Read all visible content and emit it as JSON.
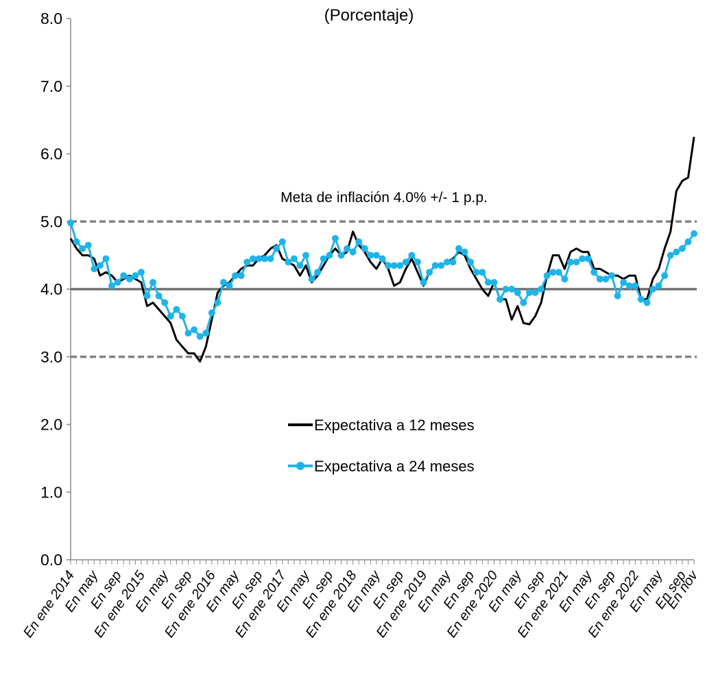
{
  "chart_data": {
    "type": "line",
    "title": "(Porcentaje)",
    "annotation": "Meta de inflación 4.0% +/- 1 p.p.",
    "categories": [
      "En ene 2014",
      null,
      null,
      null,
      "En may",
      null,
      null,
      null,
      "En sep",
      null,
      null,
      null,
      "En ene 2015",
      null,
      null,
      null,
      "En may",
      null,
      null,
      null,
      "En sep",
      null,
      null,
      null,
      "En ene 2016",
      null,
      null,
      null,
      "En may",
      null,
      null,
      null,
      "En sep",
      null,
      null,
      null,
      "En ene 2017",
      null,
      null,
      null,
      "En may",
      null,
      null,
      null,
      "En sep",
      null,
      null,
      null,
      "En ene 2018",
      null,
      null,
      null,
      "En may",
      null,
      null,
      null,
      "En sep",
      null,
      null,
      null,
      "En ene 2019",
      null,
      null,
      null,
      "En may",
      null,
      null,
      null,
      "En sep",
      null,
      null,
      null,
      "En ene 2020",
      null,
      null,
      null,
      "En may",
      null,
      null,
      null,
      "En sep",
      null,
      null,
      null,
      "En ene 2021",
      null,
      null,
      null,
      "En may",
      null,
      null,
      null,
      "En sep",
      null,
      null,
      null,
      "En ene 2022",
      null,
      null,
      null,
      "En may",
      null,
      null,
      null,
      "En sep",
      null,
      "En nov"
    ],
    "series": [
      {
        "name": "Expectativa a 12 meses",
        "color": "#000000",
        "marker": false,
        "values": [
          4.75,
          4.6,
          4.5,
          4.5,
          4.45,
          4.2,
          4.25,
          4.2,
          4.1,
          4.15,
          4.2,
          4.15,
          4.1,
          3.75,
          3.8,
          3.7,
          3.6,
          3.5,
          3.25,
          3.15,
          3.05,
          3.05,
          2.93,
          3.15,
          3.55,
          3.95,
          4.05,
          4.1,
          4.2,
          4.3,
          4.35,
          4.35,
          4.45,
          4.5,
          4.6,
          4.65,
          4.45,
          4.4,
          4.35,
          4.2,
          4.35,
          4.1,
          4.2,
          4.35,
          4.5,
          4.6,
          4.5,
          4.55,
          4.85,
          4.65,
          4.55,
          4.4,
          4.3,
          4.45,
          4.3,
          4.05,
          4.1,
          4.3,
          4.45,
          4.25,
          4.05,
          4.25,
          4.35,
          4.35,
          4.4,
          4.45,
          4.55,
          4.5,
          4.3,
          4.15,
          4.0,
          3.9,
          4.1,
          3.85,
          3.85,
          3.55,
          3.75,
          3.5,
          3.48,
          3.6,
          3.8,
          4.2,
          4.5,
          4.5,
          4.3,
          4.55,
          4.6,
          4.55,
          4.55,
          4.3,
          4.3,
          4.25,
          4.2,
          4.2,
          4.15,
          4.2,
          4.2,
          3.85,
          3.85,
          4.15,
          4.3,
          4.6,
          4.85,
          5.45,
          5.6,
          5.65,
          6.25
        ]
      },
      {
        "name": "Expectativa a 24 meses",
        "color": "#1fb4e8",
        "marker": true,
        "values": [
          4.98,
          4.7,
          4.6,
          4.65,
          4.3,
          4.35,
          4.45,
          4.05,
          4.1,
          4.2,
          4.15,
          4.2,
          4.25,
          3.9,
          4.1,
          3.9,
          3.8,
          3.6,
          3.7,
          3.6,
          3.35,
          3.4,
          3.3,
          3.35,
          3.65,
          3.8,
          4.1,
          4.05,
          4.2,
          4.2,
          4.4,
          4.45,
          4.45,
          4.45,
          4.45,
          4.6,
          4.7,
          4.4,
          4.45,
          4.35,
          4.5,
          4.15,
          4.25,
          4.45,
          4.5,
          4.75,
          4.5,
          4.6,
          4.55,
          4.7,
          4.6,
          4.5,
          4.5,
          4.45,
          4.35,
          4.35,
          4.35,
          4.4,
          4.5,
          4.4,
          4.1,
          4.25,
          4.35,
          4.35,
          4.4,
          4.4,
          4.6,
          4.55,
          4.4,
          4.25,
          4.25,
          4.1,
          4.1,
          3.85,
          4.0,
          4.0,
          3.95,
          3.8,
          3.95,
          3.95,
          4.0,
          4.2,
          4.25,
          4.25,
          4.15,
          4.4,
          4.4,
          4.45,
          4.45,
          4.25,
          4.15,
          4.15,
          4.2,
          3.9,
          4.1,
          4.05,
          4.05,
          3.85,
          3.8,
          4.0,
          4.05,
          4.2,
          4.5,
          4.55,
          4.6,
          4.7,
          4.82
        ]
      }
    ],
    "reference_lines": [
      {
        "value": 5,
        "style": "dashed",
        "color": "#808080"
      },
      {
        "value": 4,
        "style": "solid",
        "color": "#707070"
      },
      {
        "value": 3,
        "style": "dashed",
        "color": "#808080"
      }
    ],
    "ylim": [
      0,
      8
    ],
    "yticks": [
      {
        "value": 0,
        "label": "0.0"
      },
      {
        "value": 1,
        "label": "1.0"
      },
      {
        "value": 2,
        "label": "2.0"
      },
      {
        "value": 3,
        "label": "3.0"
      },
      {
        "value": 4,
        "label": "4.0"
      },
      {
        "value": 5,
        "label": "5.0"
      },
      {
        "value": 6,
        "label": "6.0"
      },
      {
        "value": 7,
        "label": "7.0"
      },
      {
        "value": 8,
        "label": "8.0"
      }
    ],
    "grid": false,
    "legend": "center"
  }
}
